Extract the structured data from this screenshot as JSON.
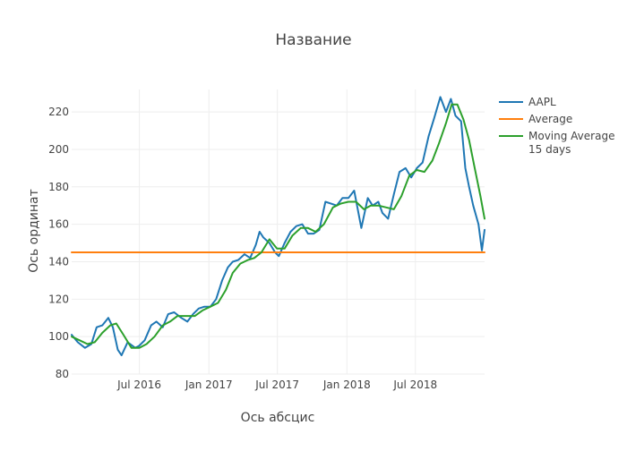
{
  "chart_data": {
    "type": "line",
    "title": "Название",
    "xlabel": "Ось абсцис",
    "ylabel": "Ось ординат",
    "x_range": [
      "2016-01-04",
      "2018-12-31"
    ],
    "ylim": [
      80,
      232
    ],
    "y_ticks": [
      80,
      100,
      120,
      140,
      160,
      180,
      200,
      220
    ],
    "x_ticks": [
      {
        "date": "2016-07-01",
        "label": "Jul 2016"
      },
      {
        "date": "2017-01-01",
        "label": "Jan 2017"
      },
      {
        "date": "2017-07-01",
        "label": "Jul 2017"
      },
      {
        "date": "2018-01-01",
        "label": "Jan 2018"
      },
      {
        "date": "2018-07-01",
        "label": "Jul 2018"
      }
    ],
    "grid": true,
    "legend_position": "top-right",
    "series": [
      {
        "name": "AAPL",
        "color": "#1f77b4",
        "x": [
          "2016-01-04",
          "2016-01-20",
          "2016-02-08",
          "2016-02-25",
          "2016-03-10",
          "2016-03-25",
          "2016-04-10",
          "2016-04-22",
          "2016-05-05",
          "2016-05-15",
          "2016-05-31",
          "2016-06-20",
          "2016-06-30",
          "2016-07-15",
          "2016-08-01",
          "2016-08-15",
          "2016-09-01",
          "2016-09-15",
          "2016-10-01",
          "2016-10-20",
          "2016-11-05",
          "2016-11-20",
          "2016-12-05",
          "2016-12-20",
          "2017-01-05",
          "2017-01-20",
          "2017-02-05",
          "2017-02-20",
          "2017-03-05",
          "2017-03-20",
          "2017-04-05",
          "2017-04-20",
          "2017-05-05",
          "2017-05-15",
          "2017-05-25",
          "2017-06-10",
          "2017-06-25",
          "2017-07-05",
          "2017-07-20",
          "2017-08-05",
          "2017-08-20",
          "2017-09-05",
          "2017-09-20",
          "2017-10-05",
          "2017-10-20",
          "2017-11-05",
          "2017-11-20",
          "2017-12-05",
          "2017-12-20",
          "2018-01-05",
          "2018-01-20",
          "2018-02-08",
          "2018-02-25",
          "2018-03-10",
          "2018-03-25",
          "2018-04-05",
          "2018-04-20",
          "2018-05-05",
          "2018-05-20",
          "2018-06-05",
          "2018-06-20",
          "2018-07-05",
          "2018-07-20",
          "2018-08-05",
          "2018-08-20",
          "2018-09-05",
          "2018-09-20",
          "2018-10-03",
          "2018-10-15",
          "2018-10-30",
          "2018-11-10",
          "2018-11-20",
          "2018-12-01",
          "2018-12-15",
          "2018-12-24",
          "2018-12-31"
        ],
        "y": [
          101,
          97,
          94,
          96,
          105,
          106,
          110,
          105,
          93,
          90,
          97,
          94,
          95,
          98,
          106,
          108,
          105,
          112,
          113,
          110,
          108,
          112,
          115,
          116,
          116,
          120,
          130,
          137,
          140,
          141,
          144,
          142,
          149,
          156,
          153,
          150,
          145,
          143,
          150,
          156,
          159,
          160,
          155,
          155,
          157,
          172,
          171,
          170,
          174,
          174,
          178,
          158,
          174,
          170,
          172,
          166,
          163,
          176,
          188,
          190,
          185,
          190,
          193,
          207,
          217,
          228,
          220,
          227,
          218,
          215,
          190,
          180,
          170,
          160,
          146,
          157
        ]
      },
      {
        "name": "Average",
        "color": "#ff7f0e",
        "x": [
          "2016-01-04",
          "2018-12-31"
        ],
        "y": [
          145,
          145
        ]
      },
      {
        "name": "Moving Average 15 days",
        "color": "#2ca02c",
        "x": [
          "2016-01-04",
          "2016-01-25",
          "2016-02-15",
          "2016-03-05",
          "2016-03-25",
          "2016-04-15",
          "2016-05-01",
          "2016-05-20",
          "2016-06-10",
          "2016-07-01",
          "2016-07-20",
          "2016-08-10",
          "2016-09-01",
          "2016-09-20",
          "2016-10-10",
          "2016-11-01",
          "2016-11-25",
          "2016-12-15",
          "2017-01-05",
          "2017-01-25",
          "2017-02-15",
          "2017-03-05",
          "2017-03-25",
          "2017-04-15",
          "2017-05-01",
          "2017-05-20",
          "2017-06-10",
          "2017-06-30",
          "2017-07-20",
          "2017-08-10",
          "2017-09-01",
          "2017-09-20",
          "2017-10-10",
          "2017-11-01",
          "2017-11-25",
          "2017-12-15",
          "2018-01-05",
          "2018-01-25",
          "2018-02-15",
          "2018-03-05",
          "2018-03-25",
          "2018-04-15",
          "2018-05-05",
          "2018-05-25",
          "2018-06-15",
          "2018-07-05",
          "2018-07-25",
          "2018-08-15",
          "2018-09-01",
          "2018-09-20",
          "2018-10-05",
          "2018-10-20",
          "2018-11-05",
          "2018-11-20",
          "2018-12-05",
          "2018-12-20",
          "2018-12-31"
        ],
        "y": [
          100,
          98,
          96,
          97,
          102,
          106,
          107,
          101,
          94,
          94,
          96,
          100,
          106,
          108,
          111,
          111,
          111,
          114,
          116,
          118,
          125,
          134,
          139,
          141,
          142,
          145,
          152,
          147,
          147,
          154,
          158,
          158,
          156,
          160,
          169,
          171,
          172,
          172,
          168,
          170,
          170,
          169,
          168,
          175,
          186,
          189,
          188,
          194,
          203,
          214,
          224,
          224,
          216,
          205,
          190,
          175,
          163
        ]
      }
    ]
  }
}
